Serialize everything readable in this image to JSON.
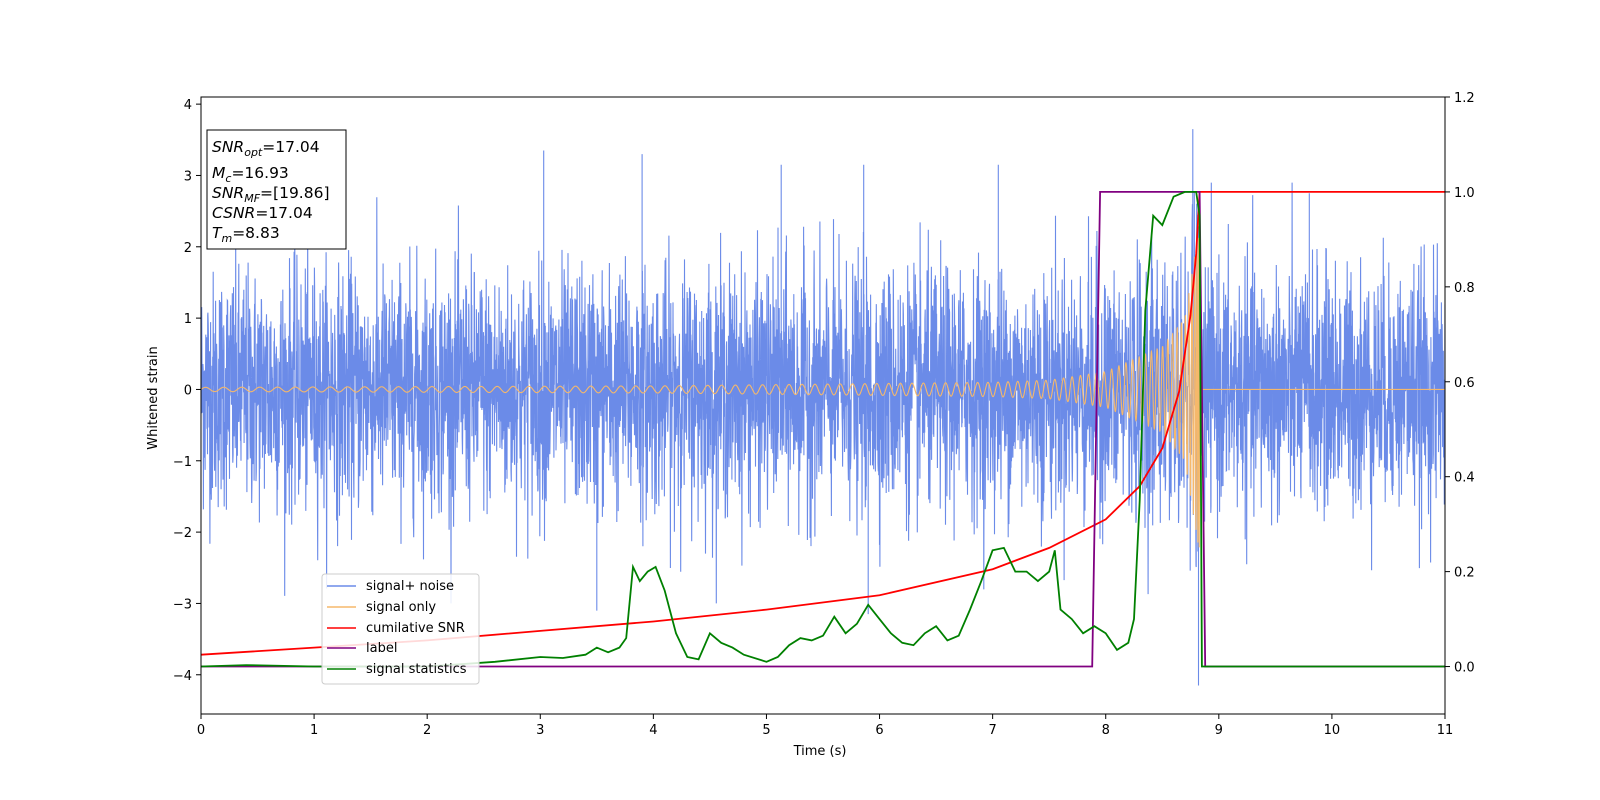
{
  "chart_data": {
    "type": "line",
    "title": "",
    "xlabel": "Time (s)",
    "ylabel_left": "Whitened strain",
    "ylabel_right": "",
    "xlim": [
      0,
      11
    ],
    "ylim_left": [
      -4.55,
      4.1
    ],
    "ylim_right": [
      -0.1,
      1.2
    ],
    "x_ticks": [
      0,
      1,
      2,
      3,
      4,
      5,
      6,
      7,
      8,
      9,
      10,
      11
    ],
    "y_left_ticks": [
      -4,
      -3,
      -2,
      -1,
      0,
      1,
      2,
      3,
      4
    ],
    "y_right_ticks": [
      0.0,
      0.2,
      0.4,
      0.6,
      0.8,
      1.0,
      1.2
    ],
    "x_tick_labels": [
      "0",
      "1",
      "2",
      "3",
      "4",
      "5",
      "6",
      "7",
      "8",
      "9",
      "10",
      "11"
    ],
    "y_left_tick_labels": [
      "−4",
      "−3",
      "−2",
      "−1",
      "0",
      "1",
      "2",
      "3",
      "4"
    ],
    "y_right_tick_labels": [
      "0.0",
      "0.2",
      "0.4",
      "0.6",
      "0.8",
      "1.0",
      "1.2"
    ],
    "grid": false,
    "legend_position": "lower-left",
    "info_box": {
      "snr_opt": {
        "sym": "SNR",
        "sub": "opt",
        "value": "=17.04"
      },
      "mc": {
        "sym": "M",
        "sub": "c",
        "value": "=16.93"
      },
      "snr_mf": {
        "sym": "SNR",
        "sub": "MF",
        "value": "=[19.86]"
      },
      "csnr": {
        "sym": "CSNR",
        "sub": "",
        "value": "=17.04"
      },
      "tm": {
        "sym": "T",
        "sub": "m",
        "value": "=8.83"
      }
    },
    "series": [
      {
        "name": "signal+ noise",
        "axis": "left",
        "color": "#6b8be8",
        "kind": "noise",
        "x_range": [
          0,
          11
        ],
        "envelope_typical": 1.5,
        "peak_values": [
          3.35,
          3.3,
          3.15,
          3.15,
          3.15,
          3.65,
          2.75,
          -3.1,
          -3.15,
          -4.15
        ]
      },
      {
        "name": "signal only",
        "axis": "left",
        "color": "#f5b86b",
        "kind": "chirp",
        "x_range": [
          0,
          8.83
        ],
        "merger_time": 8.83,
        "amplitude_points": [
          [
            0,
            0.03
          ],
          [
            4,
            0.05
          ],
          [
            7,
            0.1
          ],
          [
            7.5,
            0.13
          ],
          [
            8,
            0.25
          ],
          [
            8.5,
            0.6
          ],
          [
            8.7,
            1.0
          ],
          [
            8.8,
            2.0
          ],
          [
            8.83,
            2.3
          ]
        ]
      },
      {
        "name": "cumilative SNR",
        "axis": "right",
        "color": "#ff0000",
        "points": [
          [
            0,
            0.025
          ],
          [
            1,
            0.04
          ],
          [
            2,
            0.055
          ],
          [
            3,
            0.075
          ],
          [
            4,
            0.095
          ],
          [
            5,
            0.12
          ],
          [
            6,
            0.15
          ],
          [
            7,
            0.205
          ],
          [
            7.5,
            0.25
          ],
          [
            8,
            0.31
          ],
          [
            8.3,
            0.38
          ],
          [
            8.5,
            0.46
          ],
          [
            8.65,
            0.58
          ],
          [
            8.75,
            0.74
          ],
          [
            8.8,
            0.87
          ],
          [
            8.83,
            1.0
          ],
          [
            11,
            1.0
          ]
        ]
      },
      {
        "name": "label",
        "axis": "right",
        "color": "#800080",
        "points": [
          [
            0,
            0.0
          ],
          [
            7.88,
            0.0
          ],
          [
            7.95,
            1.0
          ],
          [
            8.83,
            1.0
          ],
          [
            8.88,
            0.0
          ],
          [
            11,
            0.0
          ]
        ]
      },
      {
        "name": "signal statistics",
        "axis": "right",
        "color": "#008000",
        "points": [
          [
            0,
            0.0
          ],
          [
            0.4,
            0.003
          ],
          [
            1,
            0.0
          ],
          [
            2,
            0.0
          ],
          [
            2.6,
            0.01
          ],
          [
            3,
            0.02
          ],
          [
            3.2,
            0.018
          ],
          [
            3.4,
            0.025
          ],
          [
            3.5,
            0.04
          ],
          [
            3.6,
            0.03
          ],
          [
            3.7,
            0.04
          ],
          [
            3.76,
            0.06
          ],
          [
            3.82,
            0.21
          ],
          [
            3.88,
            0.18
          ],
          [
            3.95,
            0.2
          ],
          [
            4.02,
            0.21
          ],
          [
            4.1,
            0.16
          ],
          [
            4.2,
            0.07
          ],
          [
            4.3,
            0.02
          ],
          [
            4.4,
            0.015
          ],
          [
            4.5,
            0.07
          ],
          [
            4.6,
            0.05
          ],
          [
            4.7,
            0.04
          ],
          [
            4.8,
            0.025
          ],
          [
            5.0,
            0.01
          ],
          [
            5.1,
            0.02
          ],
          [
            5.2,
            0.045
          ],
          [
            5.3,
            0.06
          ],
          [
            5.4,
            0.055
          ],
          [
            5.5,
            0.065
          ],
          [
            5.6,
            0.105
          ],
          [
            5.7,
            0.07
          ],
          [
            5.8,
            0.09
          ],
          [
            5.9,
            0.13
          ],
          [
            6.0,
            0.1
          ],
          [
            6.1,
            0.07
          ],
          [
            6.2,
            0.05
          ],
          [
            6.3,
            0.045
          ],
          [
            6.4,
            0.07
          ],
          [
            6.5,
            0.085
          ],
          [
            6.6,
            0.055
          ],
          [
            6.7,
            0.065
          ],
          [
            6.8,
            0.12
          ],
          [
            6.9,
            0.18
          ],
          [
            7.0,
            0.245
          ],
          [
            7.1,
            0.25
          ],
          [
            7.2,
            0.2
          ],
          [
            7.3,
            0.2
          ],
          [
            7.4,
            0.18
          ],
          [
            7.5,
            0.2
          ],
          [
            7.55,
            0.245
          ],
          [
            7.6,
            0.12
          ],
          [
            7.7,
            0.1
          ],
          [
            7.8,
            0.07
          ],
          [
            7.9,
            0.085
          ],
          [
            8.0,
            0.07
          ],
          [
            8.1,
            0.035
          ],
          [
            8.2,
            0.05
          ],
          [
            8.25,
            0.1
          ],
          [
            8.3,
            0.35
          ],
          [
            8.35,
            0.75
          ],
          [
            8.42,
            0.95
          ],
          [
            8.5,
            0.93
          ],
          [
            8.6,
            0.99
          ],
          [
            8.7,
            1.0
          ],
          [
            8.8,
            1.0
          ],
          [
            8.83,
            0.95
          ],
          [
            8.85,
            0.0
          ],
          [
            11,
            0.0
          ]
        ]
      }
    ]
  }
}
